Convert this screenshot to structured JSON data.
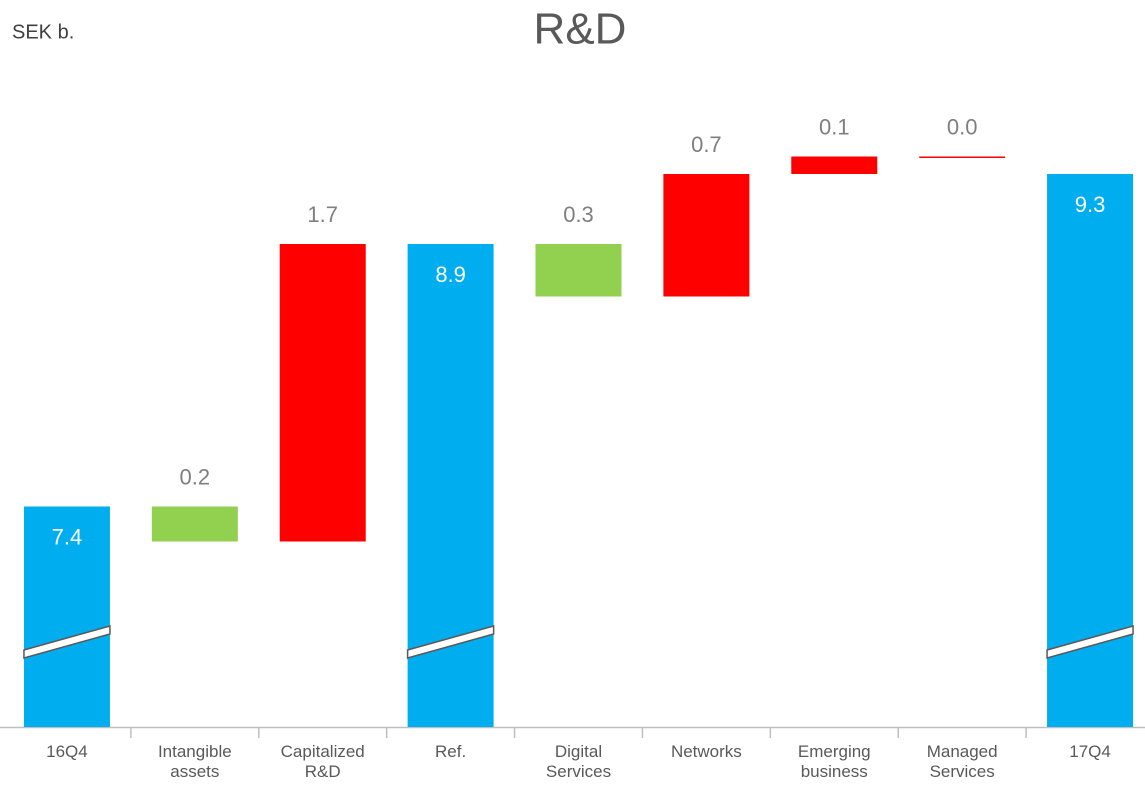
{
  "chart_data": {
    "type": "waterfall",
    "title": "R&D",
    "unit_label": "SEK b.",
    "categories": [
      "16Q4",
      "Intangible assets",
      "Capitalized R&D",
      "Ref.",
      "Digital Services",
      "Networks",
      "Emerging business",
      "Managed Services",
      "17Q4"
    ],
    "values": [
      7.4,
      0.2,
      1.7,
      8.9,
      0.3,
      0.7,
      0.1,
      0.0,
      9.3
    ],
    "value_labels": [
      "7.4",
      "0.2",
      "1.7",
      "8.9",
      "0.3",
      "0.7",
      "0.1",
      "0.0",
      "9.3"
    ],
    "measure": [
      "total",
      "decrease",
      "increase",
      "total",
      "decrease",
      "increase",
      "increase",
      "increase",
      "total"
    ],
    "colors": {
      "total": "#00aeef",
      "decrease": "#92d050",
      "increase": "#ff0000"
    },
    "ylim": [
      6.14,
      9.54
    ],
    "axis_break": true
  }
}
